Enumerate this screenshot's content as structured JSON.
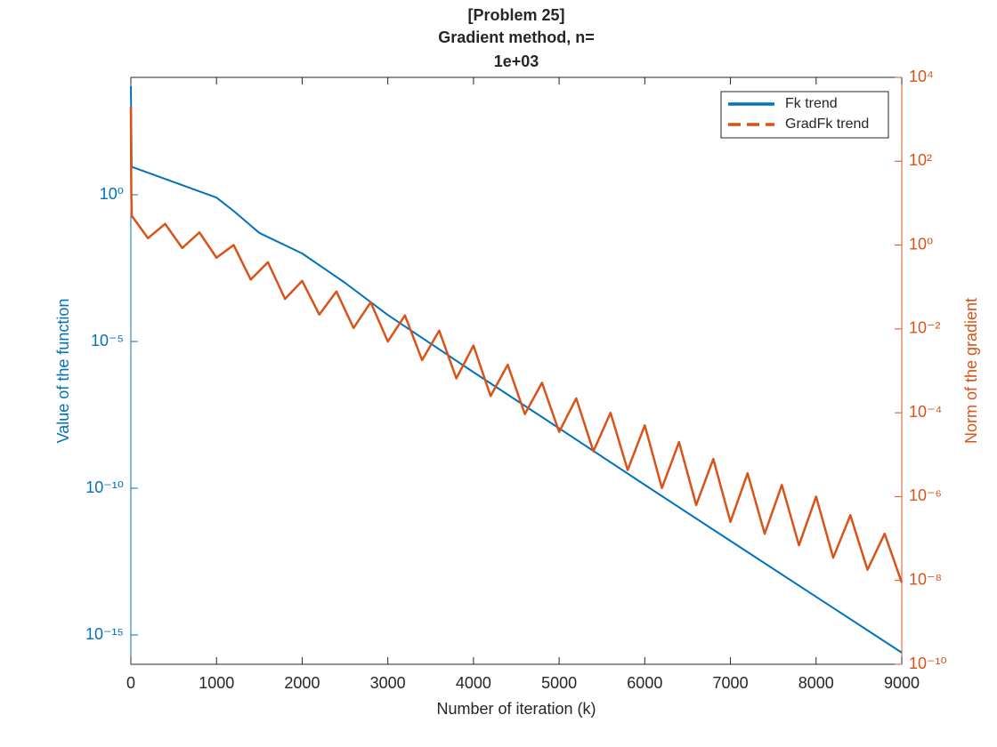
{
  "chart_data": {
    "type": "line",
    "title": [
      "[Problem 25]",
      "Gradient method, n=",
      "1e+03"
    ],
    "xlabel": "Number of iteration (k)",
    "ylabel": "Value of the function",
    "y2label": "Norm of the gradient",
    "xlim": [
      0,
      9000
    ],
    "xticks": [
      0,
      1000,
      2000,
      3000,
      4000,
      5000,
      6000,
      7000,
      8000,
      9000
    ],
    "yscale": "log",
    "ylim": [
      1e-16,
      10000.0
    ],
    "yticks": [
      {
        "value": 1e-15,
        "label": "10⁻¹⁵"
      },
      {
        "value": 1e-10,
        "label": "10⁻¹⁰"
      },
      {
        "value": 1e-05,
        "label": "10⁻⁵"
      },
      {
        "value": 1,
        "label": "10⁰"
      }
    ],
    "y2scale": "log",
    "y2lim": [
      1e-10,
      10000.0
    ],
    "y2ticks": [
      {
        "value": 1e-10,
        "label": "10⁻¹⁰"
      },
      {
        "value": 1e-08,
        "label": "10⁻⁸"
      },
      {
        "value": 1e-06,
        "label": "10⁻⁶"
      },
      {
        "value": 0.0001,
        "label": "10⁻⁴"
      },
      {
        "value": 0.01,
        "label": "10⁻²"
      },
      {
        "value": 1,
        "label": "10⁰"
      },
      {
        "value": 100,
        "label": "10²"
      },
      {
        "value": 10000,
        "label": "10⁴"
      }
    ],
    "legend": "northeast",
    "series": [
      {
        "name": "Fk trend",
        "color": "#0072BD",
        "axis": "y",
        "linestyle": "solid",
        "x": [
          0,
          10,
          1000,
          1200,
          1500,
          2000,
          2500,
          3000,
          4000,
          5000,
          6000,
          7000,
          8000,
          9000
        ],
        "values": [
          5000,
          9,
          0.8,
          0.28,
          0.05,
          0.01,
          0.001,
          8e-05,
          9e-07,
          1.1e-08,
          1.3e-10,
          1.6e-12,
          2e-14,
          2.5e-16
        ]
      },
      {
        "name": "GradFk trend",
        "color": "#D95319",
        "axis": "y2",
        "linestyle": "dashed",
        "x": [
          0,
          5,
          10,
          200,
          400,
          600,
          800,
          1000,
          1200,
          1400,
          1600,
          1800,
          2000,
          2200,
          2400,
          2600,
          2800,
          3000,
          3200,
          3400,
          3600,
          3800,
          4000,
          4200,
          4400,
          4600,
          4800,
          5000,
          5200,
          5400,
          5600,
          5800,
          6000,
          6200,
          6400,
          6600,
          6800,
          7000,
          7200,
          7400,
          7600,
          7800,
          8000,
          8200,
          8400,
          8600,
          8800,
          9000
        ],
        "values": [
          2000,
          20,
          5,
          1.46,
          3.2,
          0.85,
          2.0,
          0.5,
          1.0,
          0.15,
          0.39,
          0.052,
          0.14,
          0.022,
          0.078,
          0.0105,
          0.043,
          0.005,
          0.021,
          0.0018,
          0.0091,
          0.00066,
          0.004,
          0.00025,
          0.0014,
          9.3e-05,
          0.00052,
          3.5e-05,
          0.00022,
          1.2e-05,
          0.0001,
          4.3e-06,
          5e-05,
          1.6e-06,
          2e-05,
          6.3e-07,
          7.9e-06,
          2.5e-07,
          3.6e-06,
          1.3e-07,
          1.9e-06,
          6.9e-08,
          1e-06,
          3.5e-08,
          3.6e-07,
          1.8e-08,
          1.3e-07,
          8.9e-09
        ]
      }
    ]
  }
}
